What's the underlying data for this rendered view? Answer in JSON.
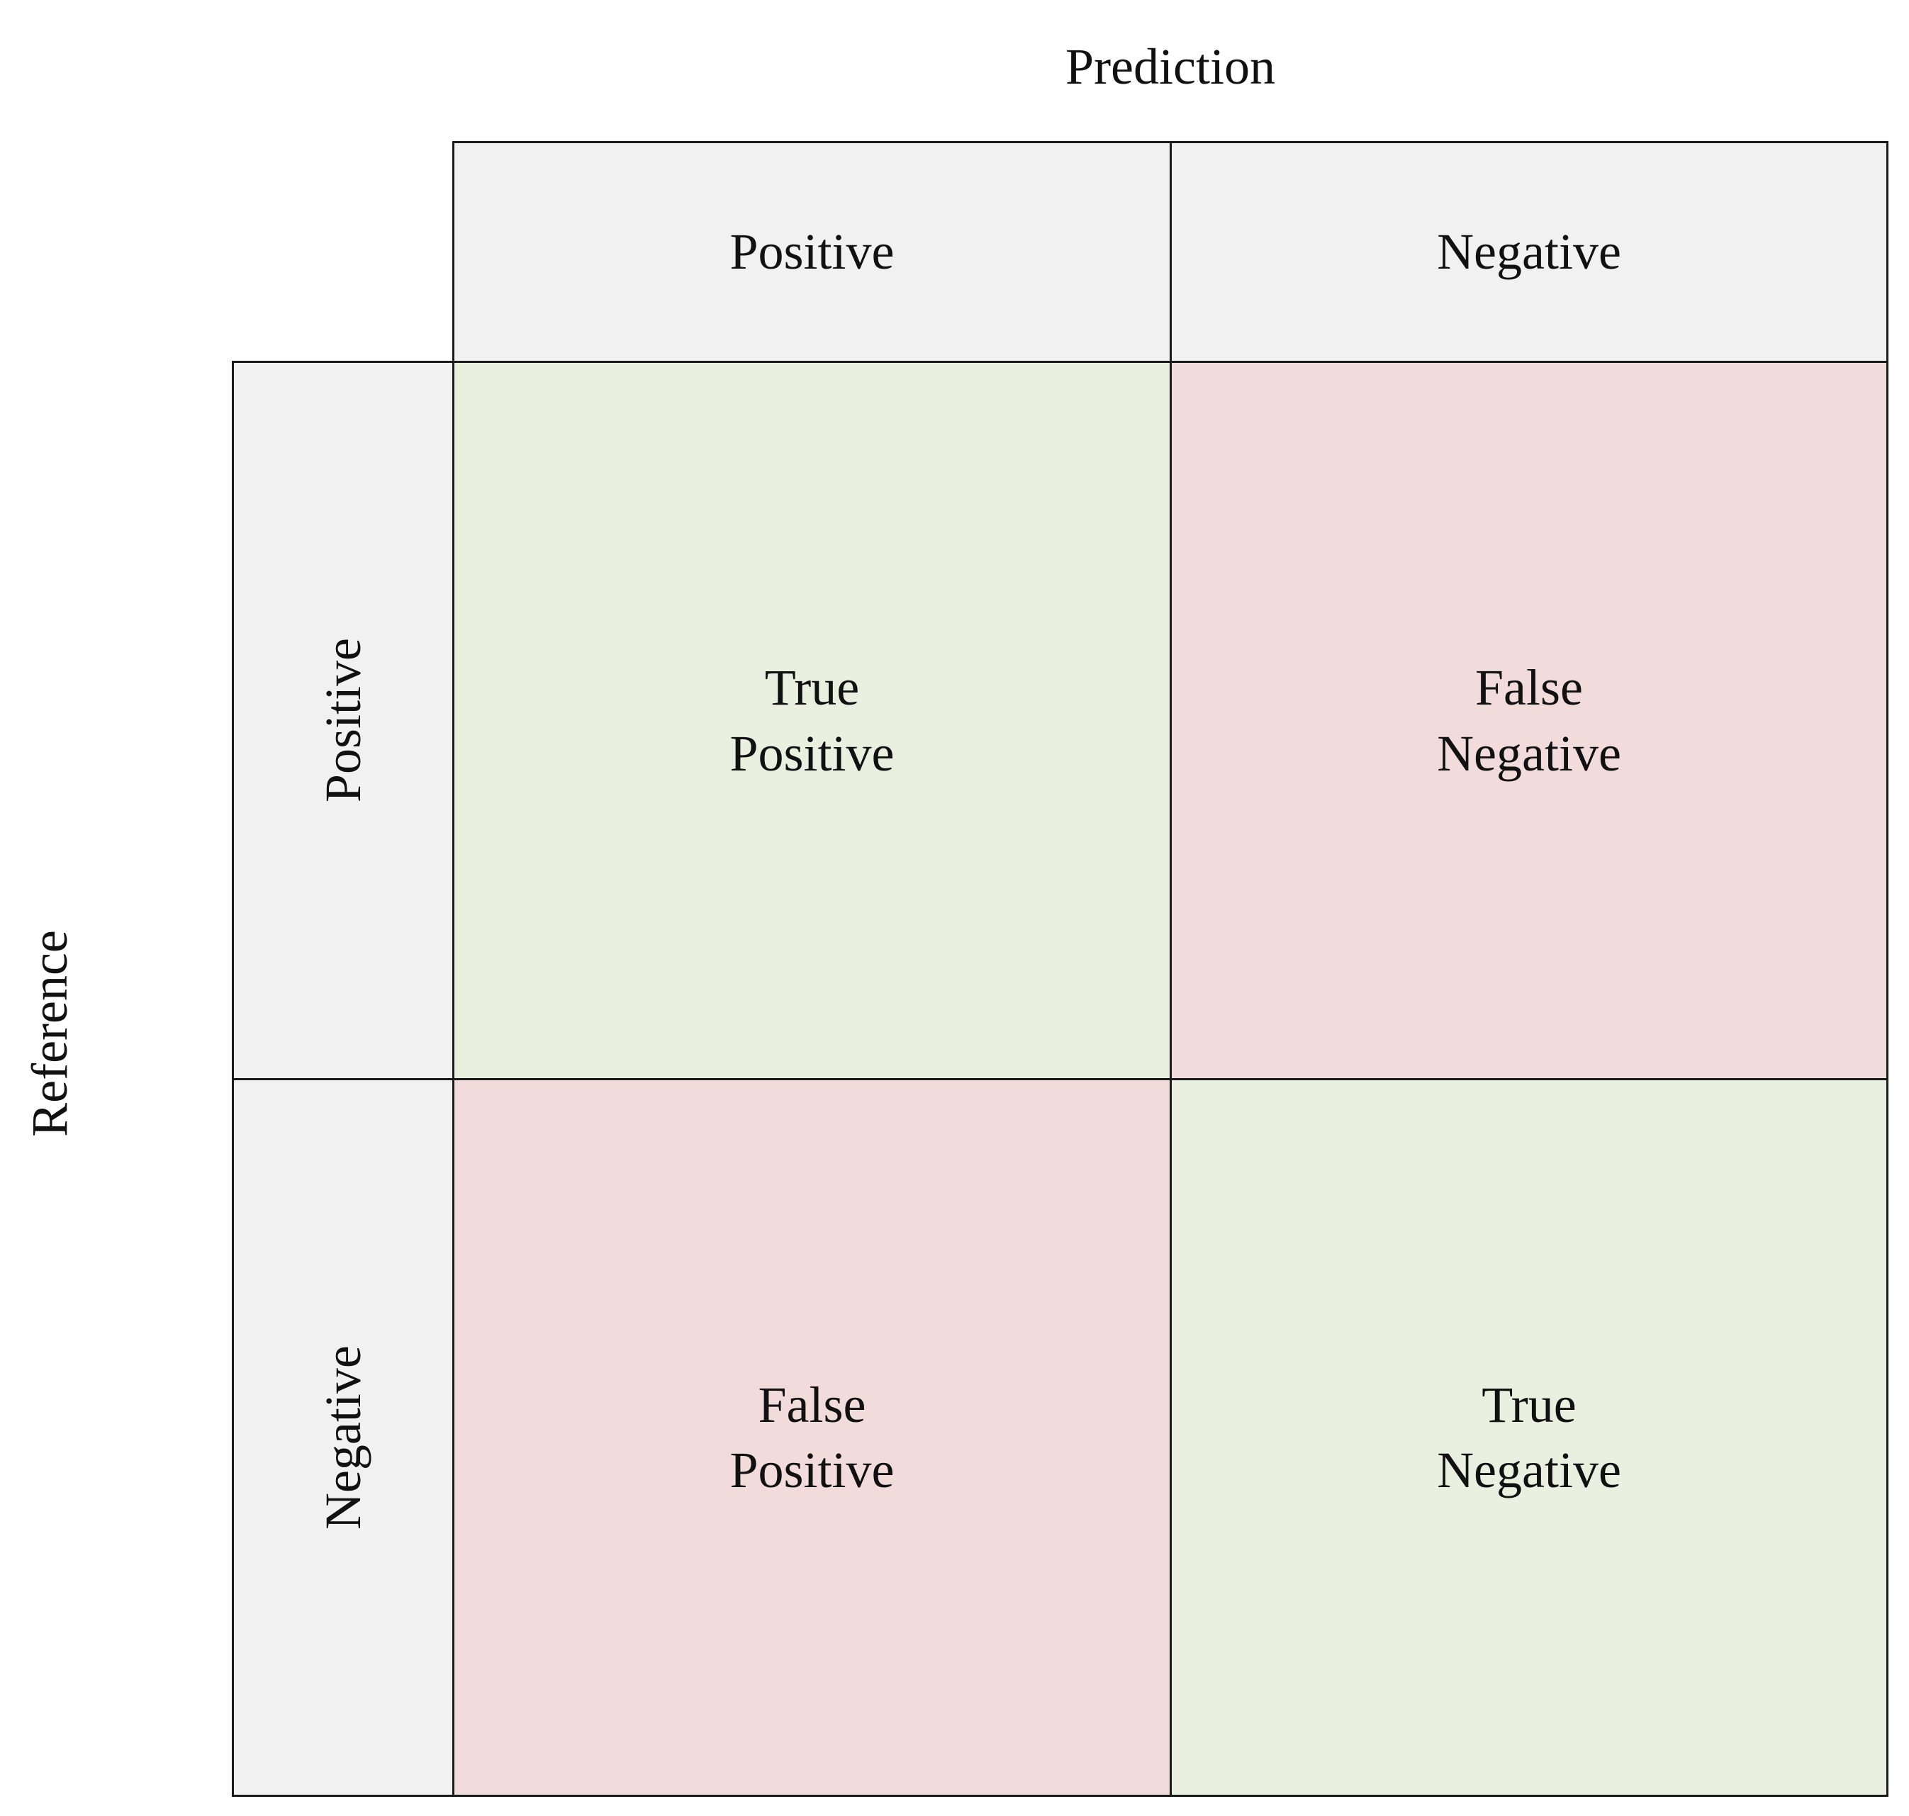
{
  "titles": {
    "prediction": "Prediction",
    "reference": "Reference"
  },
  "column_headers": {
    "positive": "Positive",
    "negative": "Negative"
  },
  "row_headers": {
    "positive": "Positive",
    "negative": "Negative"
  },
  "cells": {
    "true_positive": {
      "line1": "True",
      "line2": "Positive"
    },
    "false_negative": {
      "line1": "False",
      "line2": "Negative"
    },
    "false_positive": {
      "line1": "False",
      "line2": "Positive"
    },
    "true_negative": {
      "line1": "True",
      "line2": "Negative"
    }
  },
  "colors": {
    "header_fill": "#f1f1f1",
    "correct_fill": "#e9f0e0",
    "error_fill": "#f1dbdb",
    "border": "#1a1a1a"
  }
}
